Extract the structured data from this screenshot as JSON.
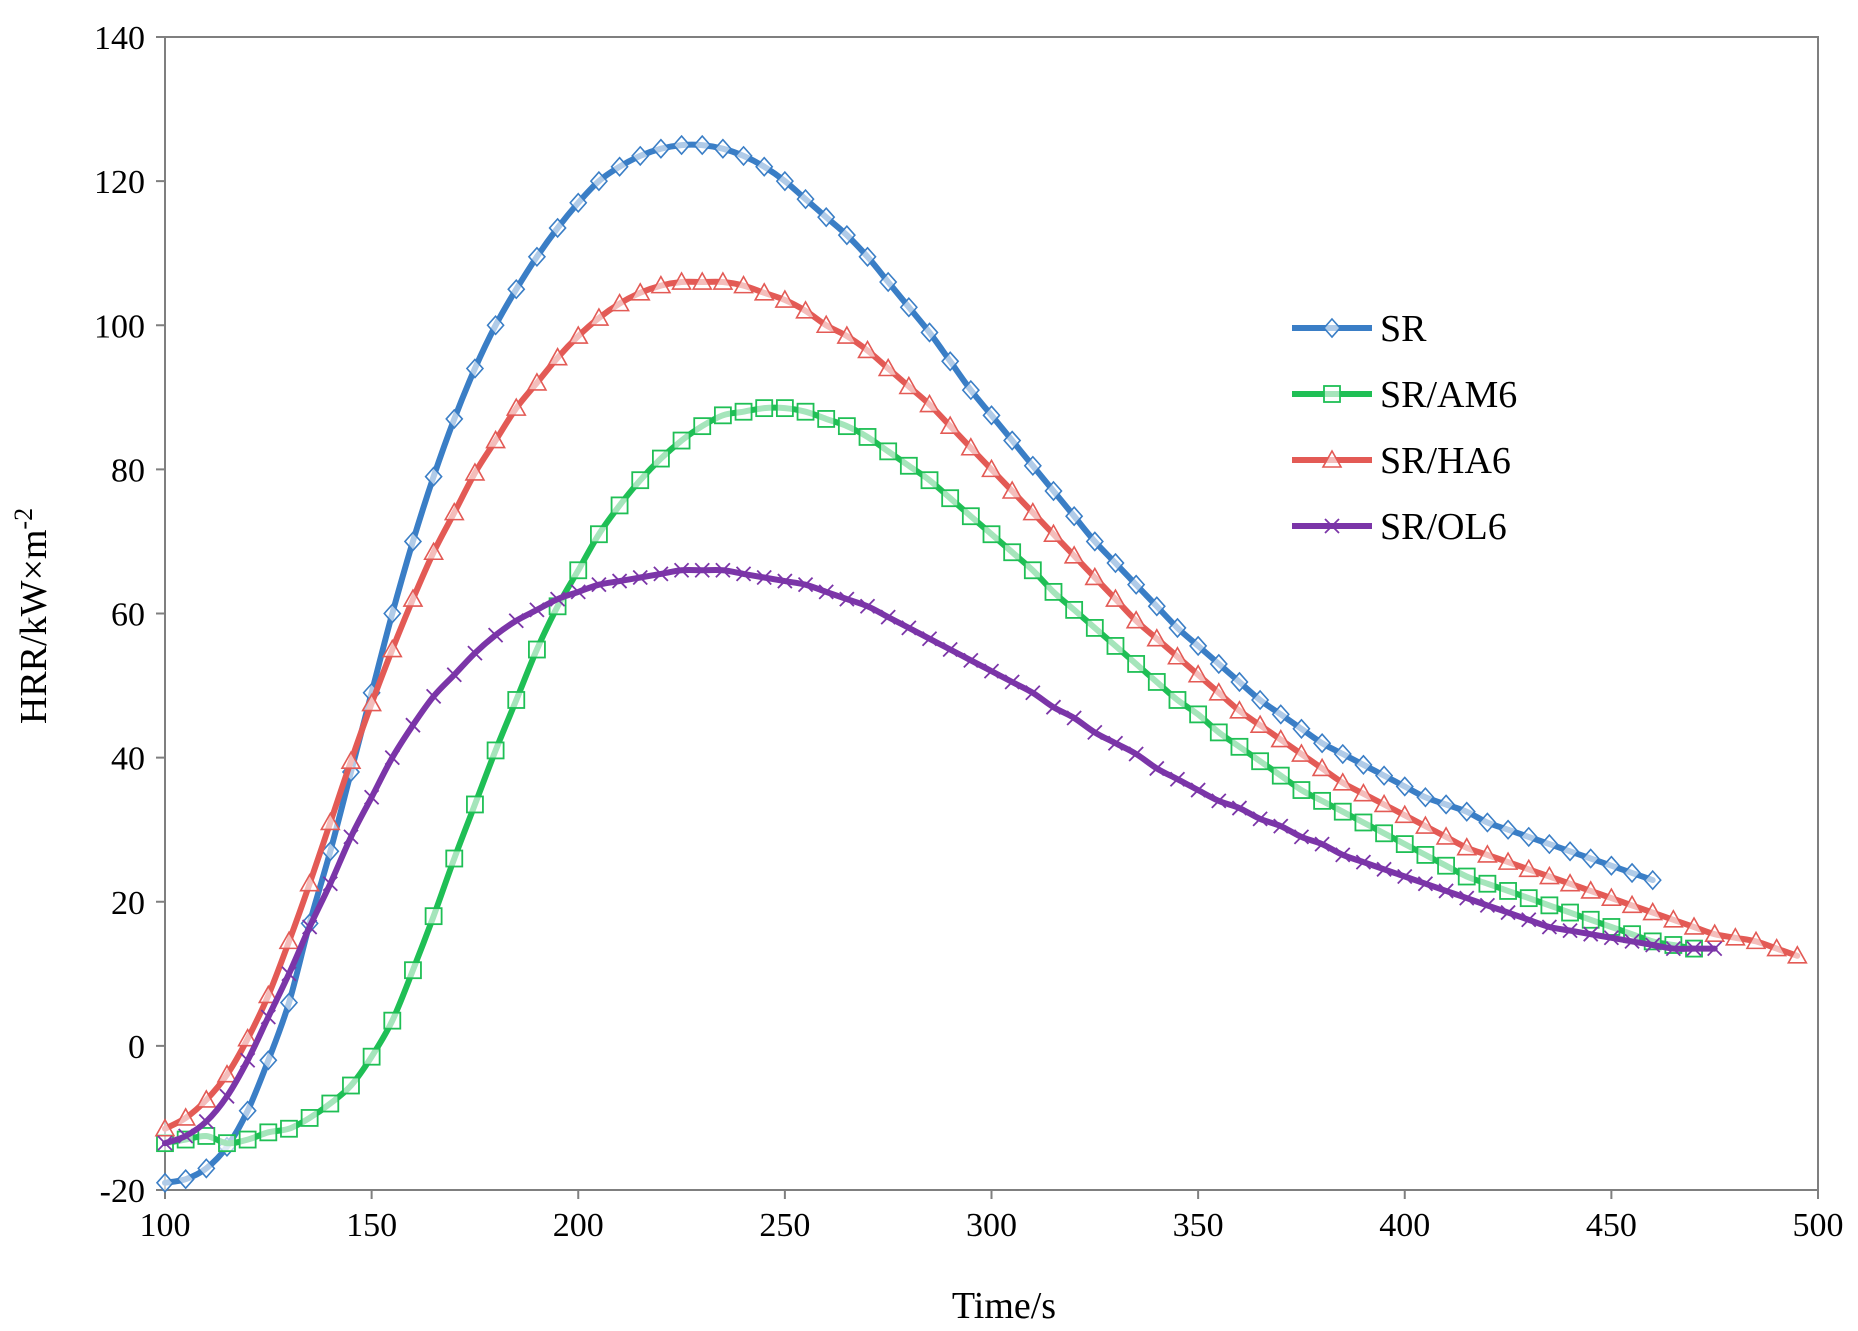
{
  "chart_data": {
    "type": "line",
    "title": "",
    "xlabel": "Time/s",
    "ylabel": "HRR/kW×m",
    "ylabel_superscript": "-2",
    "xlim": [
      100,
      500
    ],
    "ylim": [
      -20,
      140
    ],
    "xticks": [
      "100",
      "150",
      "200",
      "250",
      "300",
      "350",
      "400",
      "450",
      "500"
    ],
    "yticks": [
      "-20",
      "0",
      "20",
      "40",
      "60",
      "80",
      "100",
      "120",
      "140"
    ],
    "grid": false,
    "legend_position": "right",
    "series": [
      {
        "name": "SR",
        "color": "#3A7EC6",
        "marker": "diamond",
        "x": [
          100,
          105,
          110,
          115,
          120,
          125,
          130,
          135,
          140,
          145,
          150,
          155,
          160,
          165,
          170,
          175,
          180,
          185,
          190,
          195,
          200,
          205,
          210,
          215,
          220,
          225,
          230,
          235,
          240,
          245,
          250,
          255,
          260,
          265,
          270,
          275,
          280,
          285,
          290,
          295,
          300,
          305,
          310,
          315,
          320,
          325,
          330,
          335,
          340,
          345,
          350,
          355,
          360,
          365,
          370,
          375,
          380,
          385,
          390,
          395,
          400,
          405,
          410,
          415,
          420,
          425,
          430,
          435,
          440,
          445,
          450,
          455,
          460
        ],
        "y": [
          -19,
          -18.5,
          -17,
          -14,
          -9,
          -2,
          6,
          17,
          27,
          38,
          49,
          60,
          70,
          79,
          87,
          94,
          100,
          105,
          109.5,
          113.5,
          117,
          120,
          122,
          123.5,
          124.5,
          125,
          125,
          124.5,
          123.5,
          122,
          120,
          117.5,
          115,
          112.5,
          109.5,
          106,
          102.5,
          99,
          95,
          91,
          87.5,
          84,
          80.5,
          77,
          73.5,
          70,
          67,
          64,
          61,
          58,
          55.5,
          53,
          50.5,
          48,
          46,
          44,
          42,
          40.5,
          39,
          37.5,
          36,
          34.5,
          33.5,
          32.5,
          31,
          30,
          29,
          28,
          27,
          26,
          25,
          24,
          23
        ]
      },
      {
        "name": "SR/AM6",
        "color": "#1FBF55",
        "marker": "square",
        "x": [
          100,
          105,
          110,
          115,
          120,
          125,
          130,
          135,
          140,
          145,
          150,
          155,
          160,
          165,
          170,
          175,
          180,
          185,
          190,
          195,
          200,
          205,
          210,
          215,
          220,
          225,
          230,
          235,
          240,
          245,
          250,
          255,
          260,
          265,
          270,
          275,
          280,
          285,
          290,
          295,
          300,
          305,
          310,
          315,
          320,
          325,
          330,
          335,
          340,
          345,
          350,
          355,
          360,
          365,
          370,
          375,
          380,
          385,
          390,
          395,
          400,
          405,
          410,
          415,
          420,
          425,
          430,
          435,
          440,
          445,
          450,
          455,
          460,
          465,
          470
        ],
        "y": [
          -13.5,
          -13,
          -12.5,
          -13.5,
          -13,
          -12,
          -11.5,
          -10,
          -8,
          -5.5,
          -1.5,
          3.5,
          10.5,
          18,
          26,
          33.5,
          41,
          48,
          55,
          61,
          66,
          71,
          75,
          78.5,
          81.5,
          84,
          86,
          87.5,
          88,
          88.5,
          88.5,
          88,
          87,
          86,
          84.5,
          82.5,
          80.5,
          78.5,
          76,
          73.5,
          71,
          68.5,
          66,
          63,
          60.5,
          58,
          55.5,
          53,
          50.5,
          48,
          46,
          43.5,
          41.5,
          39.5,
          37.5,
          35.5,
          34,
          32.5,
          31,
          29.5,
          28,
          26.5,
          25,
          23.5,
          22.5,
          21.5,
          20.5,
          19.5,
          18.5,
          17.5,
          16.5,
          15.5,
          14.5,
          14,
          13.5
        ]
      },
      {
        "name": "SR/HA6",
        "color": "#E35A55",
        "marker": "triangle",
        "x": [
          100,
          105,
          110,
          115,
          120,
          125,
          130,
          135,
          140,
          145,
          150,
          155,
          160,
          165,
          170,
          175,
          180,
          185,
          190,
          195,
          200,
          205,
          210,
          215,
          220,
          225,
          230,
          235,
          240,
          245,
          250,
          255,
          260,
          265,
          270,
          275,
          280,
          285,
          290,
          295,
          300,
          305,
          310,
          315,
          320,
          325,
          330,
          335,
          340,
          345,
          350,
          355,
          360,
          365,
          370,
          375,
          380,
          385,
          390,
          395,
          400,
          405,
          410,
          415,
          420,
          425,
          430,
          435,
          440,
          445,
          450,
          455,
          460,
          465,
          470,
          475,
          480,
          485,
          490,
          495
        ],
        "y": [
          -11.5,
          -10,
          -7.5,
          -4,
          1,
          7,
          14.5,
          22.5,
          31,
          39.5,
          47.5,
          55,
          62,
          68.5,
          74,
          79.5,
          84,
          88.5,
          92,
          95.5,
          98.5,
          101,
          103,
          104.5,
          105.5,
          106,
          106,
          106,
          105.5,
          104.5,
          103.5,
          102,
          100,
          98.5,
          96.5,
          94,
          91.5,
          89,
          86,
          83,
          80,
          77,
          74,
          71,
          68,
          65,
          62,
          59,
          56.5,
          54,
          51.5,
          49,
          46.5,
          44.5,
          42.5,
          40.5,
          38.5,
          36.5,
          35,
          33.5,
          32,
          30.5,
          29,
          27.5,
          26.5,
          25.5,
          24.5,
          23.5,
          22.5,
          21.5,
          20.5,
          19.5,
          18.5,
          17.5,
          16.5,
          15.5,
          15,
          14.5,
          13.5,
          12.5
        ]
      },
      {
        "name": "SR/OL6",
        "color": "#7B35A8",
        "marker": "x",
        "x": [
          100,
          105,
          110,
          115,
          120,
          125,
          130,
          135,
          140,
          145,
          150,
          155,
          160,
          165,
          170,
          175,
          180,
          185,
          190,
          195,
          200,
          205,
          210,
          215,
          220,
          225,
          230,
          235,
          240,
          245,
          250,
          255,
          260,
          265,
          270,
          275,
          280,
          285,
          290,
          295,
          300,
          305,
          310,
          315,
          320,
          325,
          330,
          335,
          340,
          345,
          350,
          355,
          360,
          365,
          370,
          375,
          380,
          385,
          390,
          395,
          400,
          405,
          410,
          415,
          420,
          425,
          430,
          435,
          440,
          445,
          450,
          455,
          460,
          465,
          470,
          475
        ],
        "y": [
          -13.5,
          -12.5,
          -10.5,
          -7,
          -2,
          4,
          10,
          16.5,
          22.5,
          29,
          34.5,
          40,
          44.5,
          48.5,
          51.5,
          54.5,
          57,
          59,
          60.5,
          62,
          63,
          64,
          64.5,
          65,
          65.5,
          66,
          66,
          66,
          65.5,
          65,
          64.5,
          64,
          63,
          62,
          61,
          59.5,
          58,
          56.5,
          55,
          53.5,
          52,
          50.5,
          49,
          47,
          45.5,
          43.5,
          42,
          40.5,
          38.5,
          37,
          35.5,
          34,
          33,
          31.5,
          30.5,
          29,
          28,
          26.5,
          25.5,
          24.5,
          23.5,
          22.5,
          21.5,
          20.5,
          19.5,
          18.5,
          17.5,
          16.5,
          16,
          15.5,
          15,
          14.5,
          14,
          13.5,
          13.5,
          13.5
        ]
      }
    ]
  }
}
